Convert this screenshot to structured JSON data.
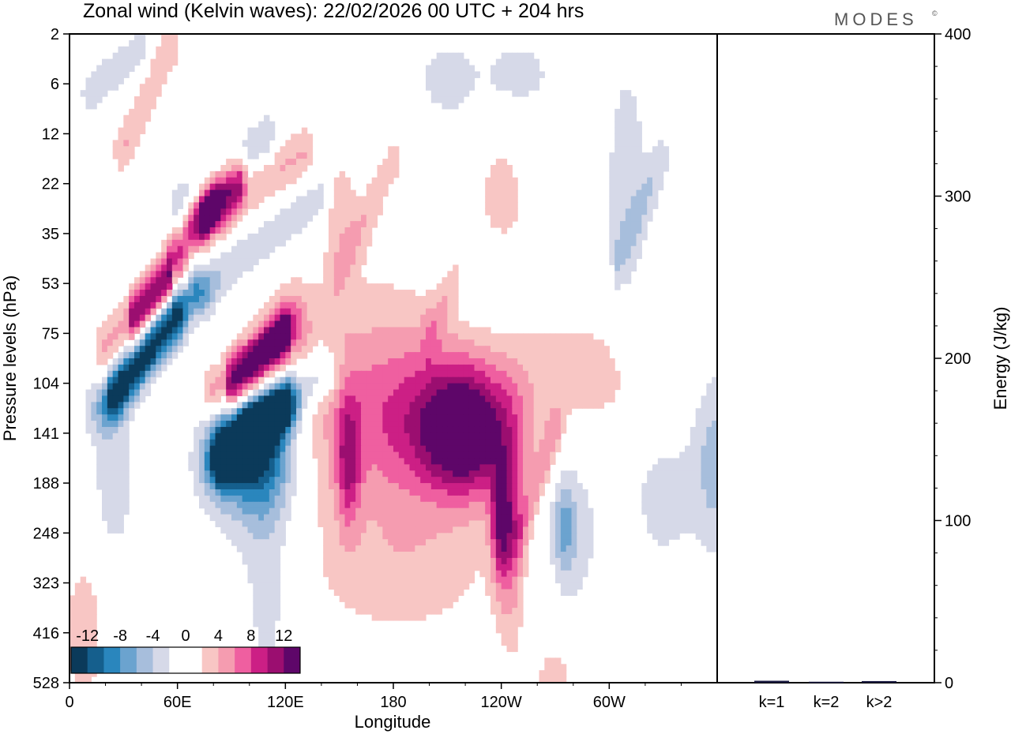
{
  "chart_data": {
    "type": "heatmap",
    "title": "Zonal wind (Kelvin waves):  22/02/2026  00 UTC  + 204 hrs",
    "brand": "MODES",
    "brand_mark": "©",
    "xlabel": "Longitude",
    "ylabel": "Pressure levels (hPa)",
    "x_ticks": [
      "0",
      "60E",
      "120E",
      "180",
      "120W",
      "60W"
    ],
    "y_ticks": [
      "2",
      "6",
      "12",
      "22",
      "35",
      "53",
      "75",
      "104",
      "141",
      "188",
      "248",
      "323",
      "416",
      "528"
    ],
    "colorbar": {
      "labels": [
        "-12",
        "-8",
        "-4",
        "0",
        "4",
        "8",
        "12"
      ],
      "colors": [
        "#0b3a5a",
        "#155f8d",
        "#2a86bd",
        "#6ba3cf",
        "#a7bedc",
        "#d6d9e8",
        "#ffffff",
        "#ffffff",
        "#f8c6c4",
        "#f59cb0",
        "#ef5fa0",
        "#cc1f85",
        "#9b0e70",
        "#5e0669"
      ]
    },
    "blobs": [
      {
        "lon": 150,
        "lev": 7.2,
        "rx": 60,
        "ry": 2.6,
        "v": 4
      },
      {
        "lon": 210,
        "lev": 7.8,
        "rx": 48,
        "ry": 1.7,
        "v": 8
      },
      {
        "lon": 220,
        "lev": 8,
        "rx": 22,
        "ry": 1.1,
        "v": 10
      },
      {
        "lon": 155,
        "lev": 8.6,
        "rx": 7,
        "ry": 1.3,
        "v": 7
      },
      {
        "lon": 185,
        "lev": 10.8,
        "rx": 50,
        "ry": 1.4,
        "v": 3
      },
      {
        "lon": 245,
        "lev": 10.2,
        "rx": 8,
        "ry": 2.2,
        "v": 5
      },
      {
        "lon": 240,
        "lev": 9.8,
        "rx": 6,
        "ry": 1.1,
        "v": 9
      },
      {
        "lon": 270,
        "lev": 13.5,
        "rx": 12,
        "ry": 1.5,
        "v": 4
      },
      {
        "lon": 240,
        "lev": 3.3,
        "rx": 14,
        "ry": 1.2,
        "v": 3
      },
      {
        "lon": 290,
        "lev": 6.8,
        "rx": 35,
        "ry": 1.3,
        "v": 3
      },
      {
        "lon": 8,
        "lev": 12,
        "rx": 10,
        "ry": 1.4,
        "v": 4
      },
      {
        "lon": 98,
        "lev": 8.4,
        "rx": 30,
        "ry": 1.8,
        "v": -4
      },
      {
        "lon": 102,
        "lev": 8.4,
        "rx": 22,
        "ry": 1.1,
        "v": -10
      },
      {
        "lon": 110,
        "lev": 10.8,
        "rx": 14,
        "ry": 3.0,
        "v": -3
      },
      {
        "lon": 25,
        "lev": 8.8,
        "rx": 14,
        "ry": 2.0,
        "v": -3
      },
      {
        "lon": 360,
        "lev": 8.6,
        "rx": 14,
        "ry": 1.8,
        "v": -5
      },
      {
        "lon": 330,
        "lev": 9.3,
        "rx": 18,
        "ry": 1.4,
        "v": -3
      },
      {
        "lon": 280,
        "lev": 9.8,
        "rx": 18,
        "ry": 2.2,
        "v": -3
      },
      {
        "lon": 275,
        "lev": 9.9,
        "rx": 6,
        "ry": 0.9,
        "v": -5
      },
      {
        "lon": 310,
        "lev": 3.0,
        "rx": 14,
        "ry": 3.0,
        "v": -3
      },
      {
        "lon": 250,
        "lev": 0.8,
        "rx": 20,
        "ry": 0.7,
        "v": -3
      },
      {
        "lon": 210,
        "lev": 0.9,
        "rx": 18,
        "ry": 0.9,
        "v": -3
      },
      {
        "lon": 230,
        "lev": 5.0,
        "rx": 18,
        "ry": 0.8,
        "v": -3
      },
      {
        "lon": 150,
        "lev": 3.5,
        "rx": 10,
        "ry": 1.0,
        "v": 3
      }
    ],
    "bands": [
      {
        "lon0": 60,
        "lev0": 4.6,
        "lon1": 20,
        "lev1": 6.3,
        "w": 6.5,
        "v": 5
      },
      {
        "lon0": 55,
        "lev0": 4.9,
        "lon1": 35,
        "lev1": 5.7,
        "w": 2.0,
        "v": 7
      },
      {
        "lon0": 70,
        "lev0": 5.2,
        "lon1": 20,
        "lev1": 7.5,
        "w": 11,
        "v": -5
      },
      {
        "lon0": 60,
        "lev0": 5.6,
        "lon1": 25,
        "lev1": 7.2,
        "w": 5,
        "v": -9
      },
      {
        "lon0": 80,
        "lev0": 3.3,
        "lon1": 60,
        "lev1": 4.3,
        "w": 5.5,
        "v": 5
      },
      {
        "lon0": 90,
        "lev0": 2.7,
        "lon1": 70,
        "lev1": 3.6,
        "w": 5,
        "v": 3
      },
      {
        "lon0": 125,
        "lev0": 5.8,
        "lon1": 80,
        "lev1": 7.2,
        "w": 7,
        "v": 6
      },
      {
        "lon0": 120,
        "lev0": 6,
        "lon1": 90,
        "lev1": 7.1,
        "w": 3,
        "v": 9
      },
      {
        "lon0": 140,
        "lev0": 6.8,
        "lon1": 85,
        "lev1": 8.6,
        "w": 10,
        "v": -6
      },
      {
        "lon0": 120,
        "lev0": 7.4,
        "lon1": 85,
        "lev1": 8.4,
        "w": 6,
        "v": -11
      },
      {
        "lon0": 130,
        "lev0": 2.4,
        "lon1": 70,
        "lev1": 3.8,
        "w": 6,
        "v": 4
      },
      {
        "lon0": 95,
        "lev0": 2.9,
        "lon1": 75,
        "lev1": 3.7,
        "w": 3,
        "v": 8
      },
      {
        "lon0": 110,
        "lev0": 2.1,
        "lon1": 60,
        "lev1": 3.5,
        "w": 5,
        "v": -4
      },
      {
        "lon0": 140,
        "lev0": 3.3,
        "lon1": 70,
        "lev1": 5.2,
        "w": 5,
        "v": -4
      },
      {
        "lon0": 55,
        "lev0": 0.3,
        "lon1": 30,
        "lev1": 2.3,
        "w": 6,
        "v": 4
      },
      {
        "lon0": 40,
        "lev0": 0.3,
        "lon1": 10,
        "lev1": 1.2,
        "w": 4,
        "v": -3
      },
      {
        "lon0": 180,
        "lev0": 2.5,
        "lon1": 150,
        "lev1": 4.8,
        "w": 4,
        "v": 3
      },
      {
        "lon0": 270,
        "lev0": 8,
        "lon1": 250,
        "lev1": 10,
        "w": 4,
        "v": 4
      },
      {
        "lon0": 220,
        "lev0": 4.5,
        "lon1": 200,
        "lev1": 6,
        "w": 4,
        "v": 2.8
      },
      {
        "lon0": 330,
        "lev0": 2.5,
        "lon1": 305,
        "lev1": 4.5,
        "w": 3,
        "v": -3
      }
    ],
    "energy_panel": {
      "ylabel": "Energy (J/kg)",
      "y_ticks": [
        "0",
        "100",
        "200",
        "300",
        "400"
      ],
      "ylim": [
        0,
        400
      ],
      "categories": [
        "k=1",
        "k=2",
        "k>2"
      ],
      "values": [
        1.2,
        0.6,
        1.0
      ],
      "bar_color": "#1a1a40"
    }
  }
}
